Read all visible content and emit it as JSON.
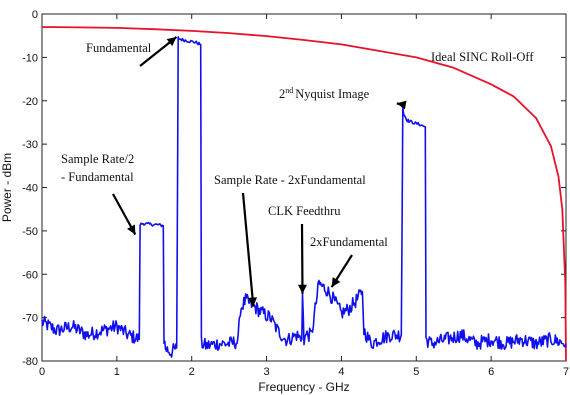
{
  "chart_data": {
    "type": "line",
    "xlabel": "Frequency - GHz",
    "ylabel": "Power - dBm",
    "xlim": [
      0,
      7
    ],
    "ylim": [
      -80,
      0
    ],
    "xticks": [
      0,
      1,
      2,
      3,
      4,
      5,
      6,
      7
    ],
    "yticks": [
      0,
      -10,
      -20,
      -30,
      -40,
      -50,
      -60,
      -70,
      -80
    ],
    "grid": false,
    "series": [
      {
        "kind": "sinc-rolloff",
        "color": "#e8102a",
        "x": [
          0,
          0.5,
          1.0,
          1.5,
          2.0,
          2.5,
          3.0,
          3.5,
          4.0,
          4.5,
          5.0,
          5.5,
          6.0,
          6.3,
          6.6,
          6.8,
          6.9,
          6.95,
          6.99,
          7.0
        ],
        "y": [
          -3.0,
          -3.1,
          -3.2,
          -3.5,
          -3.9,
          -4.4,
          -5.1,
          -6.0,
          -7.0,
          -8.5,
          -10.0,
          -12.4,
          -16.2,
          -19.0,
          -24.0,
          -30.5,
          -37.5,
          -45.0,
          -62.0,
          -80.0
        ]
      },
      {
        "kind": "spectrum",
        "color": "#1010ee",
        "x": [
          0.0,
          0.2,
          0.4,
          0.6,
          0.8,
          1.0,
          1.15,
          1.3,
          1.31,
          1.35,
          1.45,
          1.55,
          1.62,
          1.63,
          1.65,
          1.72,
          1.8,
          1.82,
          1.84,
          1.95,
          2.05,
          2.12,
          2.13,
          2.2,
          2.35,
          2.5,
          2.62,
          2.65,
          2.72,
          2.8,
          2.95,
          3.05,
          3.15,
          3.25,
          3.3,
          3.4,
          3.47,
          3.48,
          3.5,
          3.53,
          3.6,
          3.7,
          3.72,
          3.8,
          3.9,
          4.0,
          4.1,
          4.2,
          4.28,
          4.3,
          4.4,
          4.5,
          4.65,
          4.8,
          4.82,
          4.83,
          4.88,
          4.95,
          5.05,
          5.12,
          5.13,
          5.2,
          5.4,
          5.6,
          5.8,
          6.0,
          6.2,
          6.4,
          6.6,
          6.8,
          7.0
        ],
        "y": [
          -71,
          -73,
          -72,
          -74,
          -73,
          -72,
          -74,
          -75,
          -48.5,
          -48.3,
          -48.5,
          -48.6,
          -48.8,
          -75,
          -77,
          -78,
          -77,
          -5.5,
          -5.8,
          -6.2,
          -6.5,
          -7.0,
          -76,
          -76.5,
          -76,
          -76,
          -75.5,
          -68,
          -66,
          -67,
          -69,
          -70,
          -73,
          -75,
          -75,
          -74,
          -75,
          -64.5,
          -75,
          -74,
          -74,
          -62,
          -62.5,
          -63.5,
          -66,
          -69,
          -68,
          -66,
          -64,
          -73,
          -76,
          -75,
          -74,
          -74,
          -21.5,
          -23,
          -24.5,
          -25,
          -25.5,
          -26,
          -75,
          -76,
          -75,
          -74,
          -76,
          -75,
          -76,
          -75,
          -76,
          -75,
          -76
        ]
      }
    ],
    "annotations": [
      {
        "text": "Fundamental",
        "x": 1.85,
        "y": -6
      },
      {
        "text": "Ideal SINC Roll-Off",
        "x": 6.0,
        "y": -11
      },
      {
        "text": "Nyquist Image",
        "prefix": "2",
        "sup": "nd",
        "x": 4.82,
        "y": -22
      },
      {
        "text": "Sample Rate/2",
        "x": 1.3,
        "y": -49
      },
      {
        "text": "- Fundamental",
        "x": 1.3,
        "y": -49
      },
      {
        "text": "Sample Rate - 2xFundamental",
        "x": 2.85,
        "y": -67
      },
      {
        "text": "CLK Feedthru",
        "x": 3.48,
        "y": -64.5
      },
      {
        "text": "2xFundamental",
        "x": 3.95,
        "y": -62.5
      }
    ]
  }
}
